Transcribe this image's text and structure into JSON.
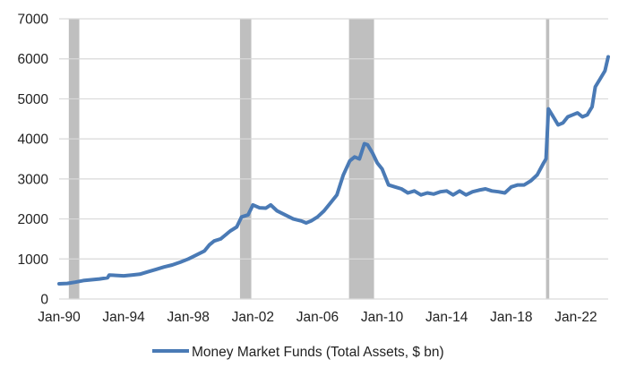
{
  "chart_data": {
    "type": "line",
    "title": "",
    "xlabel": "",
    "ylabel": "",
    "ylim": [
      0,
      7000
    ],
    "yticks": [
      0,
      1000,
      2000,
      3000,
      4000,
      5000,
      6000,
      7000
    ],
    "xticks": [
      "Jan-90",
      "Jan-94",
      "Jan-98",
      "Jan-02",
      "Jan-06",
      "Jan-10",
      "Jan-14",
      "Jan-18",
      "Jan-22"
    ],
    "xtick_years": [
      1990,
      1994,
      1998,
      2002,
      2006,
      2010,
      2014,
      2018,
      2022
    ],
    "xlim": [
      1990,
      2024
    ],
    "grid": "horizontal",
    "legend_position": "bottom",
    "recessions": [
      {
        "start": 1990.6,
        "end": 1991.25
      },
      {
        "start": 2001.2,
        "end": 2001.9
      },
      {
        "start": 2007.95,
        "end": 2009.5
      },
      {
        "start": 2020.15,
        "end": 2020.35
      }
    ],
    "series": [
      {
        "name": "Money Market Funds (Total Assets, $ bn)",
        "color": "#4a7ab5",
        "x": [
          1990.0,
          1990.5,
          1991.0,
          1991.5,
          1992.0,
          1992.5,
          1993.0,
          1993.1,
          1993.5,
          1994.0,
          1994.5,
          1995.0,
          1995.5,
          1996.0,
          1996.5,
          1997.0,
          1997.5,
          1998.0,
          1998.5,
          1999.0,
          1999.3,
          1999.6,
          2000.0,
          2000.3,
          2000.6,
          2001.0,
          2001.3,
          2001.7,
          2002.0,
          2002.4,
          2002.8,
          2003.1,
          2003.5,
          2004.0,
          2004.5,
          2005.0,
          2005.3,
          2005.6,
          2006.0,
          2006.4,
          2006.8,
          2007.2,
          2007.6,
          2008.0,
          2008.3,
          2008.6,
          2008.9,
          2009.1,
          2009.4,
          2009.7,
          2010.0,
          2010.4,
          2010.8,
          2011.2,
          2011.6,
          2012.0,
          2012.4,
          2012.8,
          2013.2,
          2013.6,
          2014.0,
          2014.4,
          2014.8,
          2015.2,
          2015.6,
          2016.0,
          2016.4,
          2016.8,
          2017.2,
          2017.6,
          2018.0,
          2018.4,
          2018.8,
          2019.2,
          2019.6,
          2020.0,
          2020.15,
          2020.3,
          2020.6,
          2020.9,
          2021.2,
          2021.5,
          2021.8,
          2022.1,
          2022.4,
          2022.7,
          2023.0,
          2023.2,
          2023.5,
          2023.8,
          2024.0
        ],
        "values": [
          380,
          390,
          420,
          460,
          480,
          500,
          530,
          600,
          590,
          580,
          600,
          620,
          680,
          740,
          800,
          850,
          920,
          1000,
          1100,
          1200,
          1350,
          1450,
          1500,
          1600,
          1700,
          1800,
          2050,
          2100,
          2350,
          2280,
          2270,
          2350,
          2200,
          2100,
          2000,
          1950,
          1900,
          1950,
          2050,
          2200,
          2400,
          2600,
          3100,
          3450,
          3550,
          3500,
          3880,
          3850,
          3650,
          3400,
          3250,
          2850,
          2800,
          2750,
          2650,
          2700,
          2600,
          2650,
          2620,
          2680,
          2700,
          2600,
          2700,
          2600,
          2680,
          2720,
          2750,
          2700,
          2680,
          2650,
          2800,
          2850,
          2850,
          2950,
          3100,
          3400,
          3500,
          4750,
          4550,
          4350,
          4400,
          4550,
          4600,
          4650,
          4550,
          4600,
          4800,
          5300,
          5500,
          5700,
          6050
        ]
      }
    ]
  },
  "legend": {
    "label": "Money Market Funds (Total Assets, $ bn)"
  }
}
